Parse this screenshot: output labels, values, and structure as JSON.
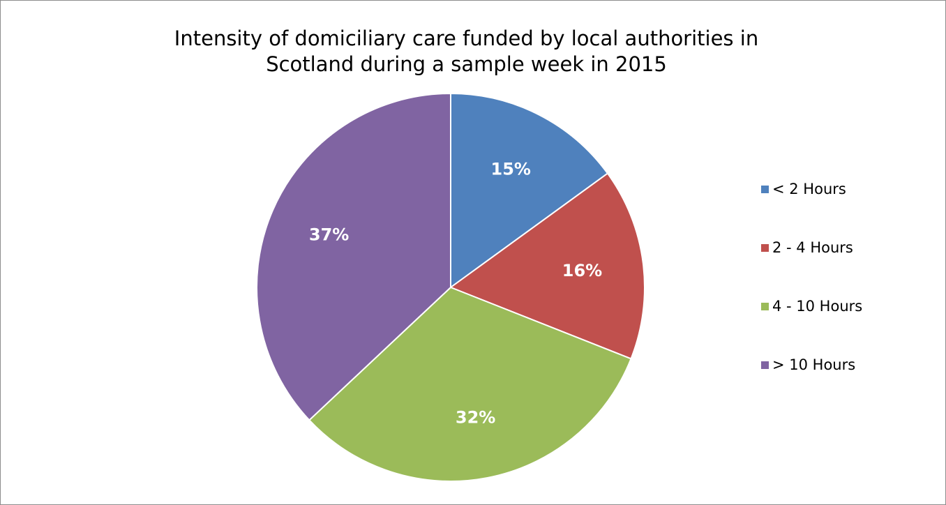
{
  "chart_data": {
    "type": "pie",
    "title": "Intensity of domiciliary care funded by local authorities in Scotland during a sample week in 2015",
    "title_lines": [
      "Intensity of domiciliary care funded by local authorities in",
      "Scotland during a sample week in 2015"
    ],
    "categories": [
      "< 2 Hours",
      "2 - 4 Hours",
      "4 - 10 Hours",
      "> 10 Hours"
    ],
    "values": [
      15,
      16,
      32,
      37
    ],
    "data_labels": [
      "15%",
      "16%",
      "32%",
      "37%"
    ],
    "colors": [
      "#4f81bd",
      "#c0504d",
      "#9bbb59",
      "#8064a2"
    ],
    "legend_position": "right",
    "start_angle": "12 o'clock, clockwise"
  }
}
